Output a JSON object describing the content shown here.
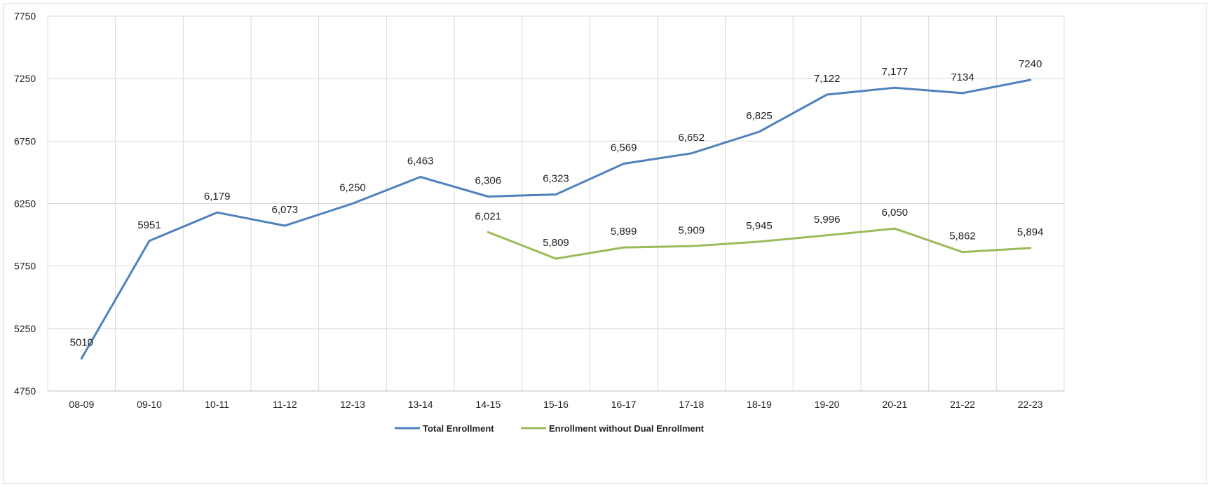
{
  "chart_data": {
    "type": "line",
    "title": "",
    "xlabel": "",
    "ylabel": "",
    "categories": [
      "08-09",
      "09-10",
      "10-11",
      "11-12",
      "12-13",
      "13-14",
      "14-15",
      "15-16",
      "16-17",
      "17-18",
      "18-19",
      "19-20",
      "20-21",
      "21-22",
      "22-23"
    ],
    "ylim": [
      4750,
      7750
    ],
    "yticks": [
      4750,
      5250,
      5750,
      6250,
      6750,
      7250,
      7750
    ],
    "grid": true,
    "legend_position": "bottom",
    "series": [
      {
        "name": "Total Enrollment",
        "color": "#4f81bd",
        "values": [
          5010,
          5951,
          6179,
          6073,
          6250,
          6463,
          6306,
          6323,
          6569,
          6652,
          6825,
          7122,
          7177,
          7134,
          7240
        ],
        "labels": [
          "5010",
          "5951",
          "6,179",
          "6,073",
          "6,250",
          "6,463",
          "6,306",
          "6,323",
          "6,569",
          "6,652",
          "6,825",
          "7,122",
          "7,177",
          "7134",
          "7240"
        ]
      },
      {
        "name": "Enrollment without Dual Enrollment",
        "color": "#9bbb59",
        "values": [
          null,
          null,
          null,
          null,
          null,
          null,
          6021,
          5809,
          5899,
          5909,
          5945,
          5996,
          6050,
          5862,
          5894
        ],
        "labels": [
          null,
          null,
          null,
          null,
          null,
          null,
          "6,021",
          "5,809",
          "5,899",
          "5,909",
          "5,945",
          "5,996",
          "6,050",
          "5,862",
          "5,894"
        ]
      }
    ]
  }
}
